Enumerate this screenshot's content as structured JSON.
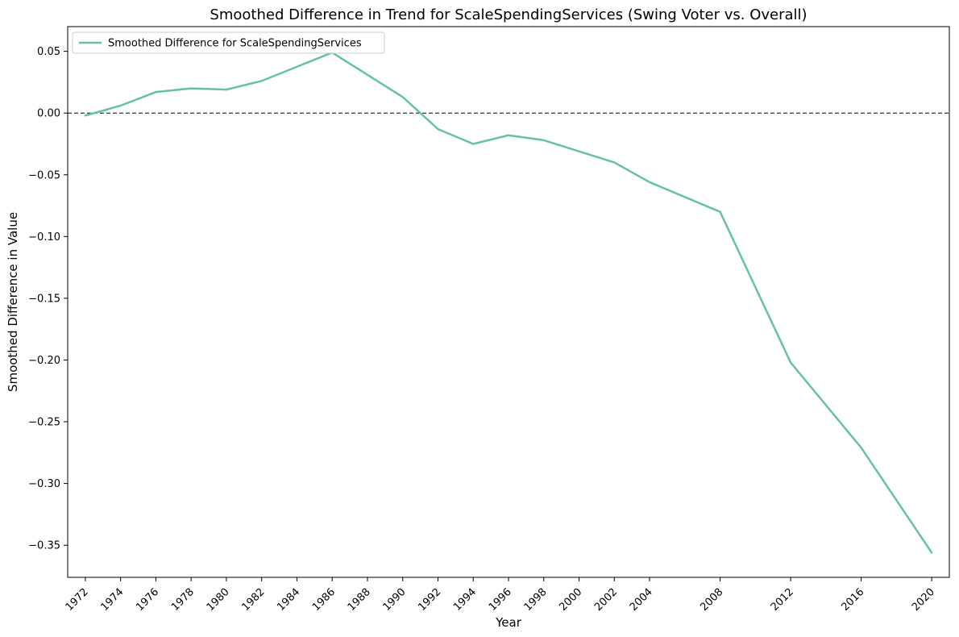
{
  "chart_data": {
    "type": "line",
    "title": "Smoothed Difference in Trend for ScaleSpendingServices (Swing Voter vs. Overall)",
    "xlabel": "Year",
    "ylabel": "Smoothed Difference in Value",
    "x_ticks": [
      1972,
      1974,
      1976,
      1978,
      1980,
      1982,
      1984,
      1986,
      1988,
      1990,
      1992,
      1994,
      1996,
      1998,
      2000,
      2002,
      2004,
      2008,
      2012,
      2016,
      2020
    ],
    "y_ticks": [
      0.05,
      0.0,
      -0.05,
      -0.1,
      -0.15,
      -0.2,
      -0.25,
      -0.3,
      -0.35
    ],
    "y_tick_labels": [
      "0.05",
      "0.00",
      "−0.05",
      "−0.10",
      "−0.15",
      "−0.20",
      "−0.25",
      "−0.30",
      "−0.35"
    ],
    "xlim": [
      1971.0,
      2021.0
    ],
    "ylim": [
      -0.376,
      0.07
    ],
    "grid": false,
    "legend_position": "top-left",
    "reference_line": {
      "y": 0.0,
      "style": "dashed",
      "color": "#000000"
    },
    "series": [
      {
        "name": "Smoothed Difference for ScaleSpendingServices",
        "color": "#66c2a5",
        "x": [
          1972,
          1974,
          1976,
          1978,
          1980,
          1982,
          1986,
          1990,
          1992,
          1994,
          1996,
          1998,
          2000,
          2002,
          2004,
          2008,
          2012,
          2016,
          2020
        ],
        "y": [
          -0.002,
          0.006,
          0.017,
          0.02,
          0.019,
          0.026,
          0.049,
          0.013,
          -0.013,
          -0.025,
          -0.018,
          -0.022,
          -0.031,
          -0.04,
          -0.056,
          -0.08,
          -0.202,
          -0.271,
          -0.356
        ]
      }
    ]
  }
}
